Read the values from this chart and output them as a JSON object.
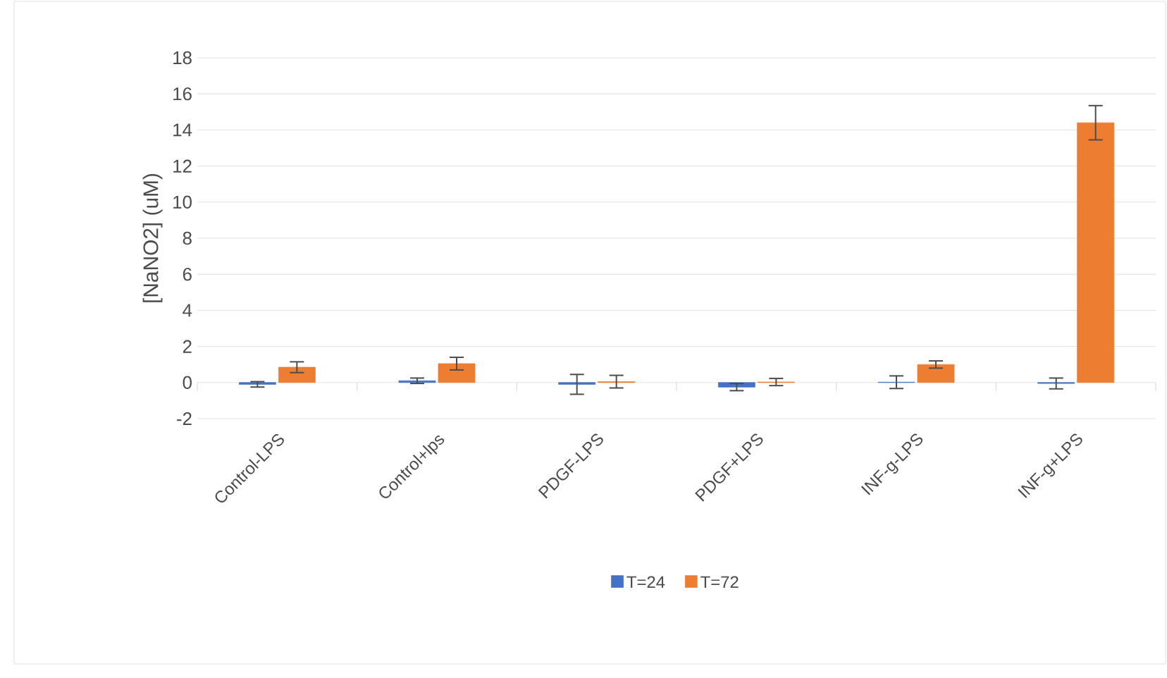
{
  "chart_data": {
    "type": "bar",
    "ylabel": "[NaNO2] (uM)",
    "categories": [
      "Control-LPS",
      "Control+lps",
      "PDGF-LPS",
      "PDGF+LPS",
      "INF-g-LPS",
      "INF-g+LPS"
    ],
    "series": [
      {
        "name": "T=24",
        "color": "#4472c4",
        "values": [
          -0.1,
          0.1,
          -0.1,
          -0.25,
          0.02,
          -0.05
        ],
        "errors": [
          0.15,
          0.15,
          0.55,
          0.2,
          0.35,
          0.3
        ]
      },
      {
        "name": "T=72",
        "color": "#ed7d31",
        "values": [
          0.85,
          1.05,
          0.05,
          0.03,
          1.0,
          14.4
        ],
        "errors": [
          0.3,
          0.35,
          0.35,
          0.2,
          0.2,
          0.95
        ]
      }
    ],
    "ylim": [
      -2,
      18
    ],
    "yticks": [
      -2,
      0,
      2,
      4,
      6,
      8,
      10,
      12,
      14,
      16,
      18
    ],
    "grid": "y",
    "legend": "bottom"
  }
}
